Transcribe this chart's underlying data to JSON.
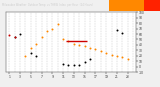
{
  "background_color": "#f0f0f0",
  "plot_bg_color": "#ffffff",
  "grid_color": "#aaaaaa",
  "ylim": [
    -10,
    100
  ],
  "xlim": [
    -0.5,
    23.5
  ],
  "y_ticks": [
    -10,
    0,
    10,
    20,
    30,
    40,
    50,
    60,
    70,
    80,
    90,
    100
  ],
  "y_tick_labels": [
    "-10",
    "0",
    "10",
    "20",
    "30",
    "40",
    "50",
    "60",
    "70",
    "80",
    "90",
    "100"
  ],
  "x_tick_positions": [
    0,
    2,
    4,
    6,
    8,
    10,
    12,
    14,
    16,
    18,
    20,
    22
  ],
  "x_tick_labels": [
    "1",
    "3",
    "5",
    "7",
    "9",
    "11",
    "13",
    "15",
    "17",
    "19",
    "21",
    "23"
  ],
  "title_dark": "#2a2a2a",
  "title_highlight": "#ff2200",
  "title_highlight2": "#ff8800",
  "temp_dots_black": {
    "x": [
      1,
      2,
      4,
      5,
      10,
      11,
      12,
      13,
      14,
      15,
      20,
      21
    ],
    "y": [
      55,
      60,
      25,
      20,
      5,
      3,
      3,
      4,
      8,
      14,
      68,
      62
    ],
    "color": "#000000",
    "size": 2
  },
  "thsw_dots_orange": {
    "x": [
      3,
      4,
      5,
      6,
      7,
      8,
      9,
      10,
      11,
      12,
      13,
      14,
      15,
      16,
      17,
      18,
      19,
      20,
      21,
      22
    ],
    "y": [
      20,
      35,
      42,
      55,
      65,
      70,
      78,
      50,
      48,
      42,
      40,
      38,
      35,
      32,
      28,
      25,
      22,
      20,
      18,
      15
    ],
    "color": "#ff8800",
    "size": 2
  },
  "red_dots": {
    "x": [
      0,
      1
    ],
    "y": [
      58,
      55
    ],
    "color": "#cc0000",
    "size": 2
  },
  "hline": {
    "x_start": 10.5,
    "x_end": 14.5,
    "y": 48,
    "color": "#cc0000",
    "linewidth": 1.0
  },
  "vline_positions": [
    0,
    1,
    2,
    3,
    4,
    5,
    6,
    7,
    8,
    9,
    10,
    11,
    12,
    13,
    14,
    15,
    16,
    17,
    18,
    19,
    20,
    21,
    22,
    23
  ]
}
